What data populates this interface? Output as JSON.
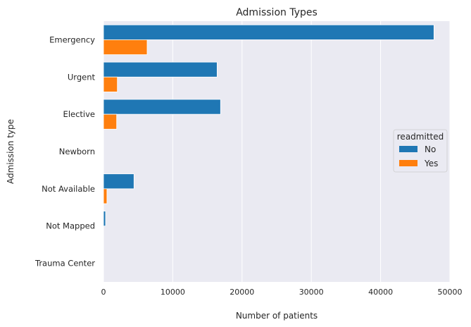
{
  "chart_data": {
    "type": "bar",
    "orientation": "horizontal",
    "title": "Admission Types",
    "xlabel": "Number of patients",
    "ylabel": "Admission type",
    "categories": [
      "Emergency",
      "Urgent",
      "Elective",
      "Newborn",
      "Not Available",
      "Not Mapped",
      "Trauma Center"
    ],
    "series": [
      {
        "name": "No",
        "color": "#1f77b4",
        "values": [
          47700,
          16400,
          16900,
          0,
          4400,
          300,
          0
        ]
      },
      {
        "name": "Yes",
        "color": "#ff7f0e",
        "values": [
          6300,
          2000,
          1900,
          0,
          500,
          0,
          0
        ]
      }
    ],
    "xlim": [
      0,
      50000
    ],
    "xticks": [
      0,
      10000,
      20000,
      30000,
      40000,
      50000
    ],
    "xtick_labels": [
      "0",
      "10000",
      "20000",
      "30000",
      "40000",
      "50000"
    ],
    "grid": true,
    "legend": {
      "title": "readmitted",
      "position": "right",
      "entries": [
        "No",
        "Yes"
      ]
    },
    "colors": {
      "background": "#eaeaf2",
      "grid": "#ffffff"
    }
  }
}
